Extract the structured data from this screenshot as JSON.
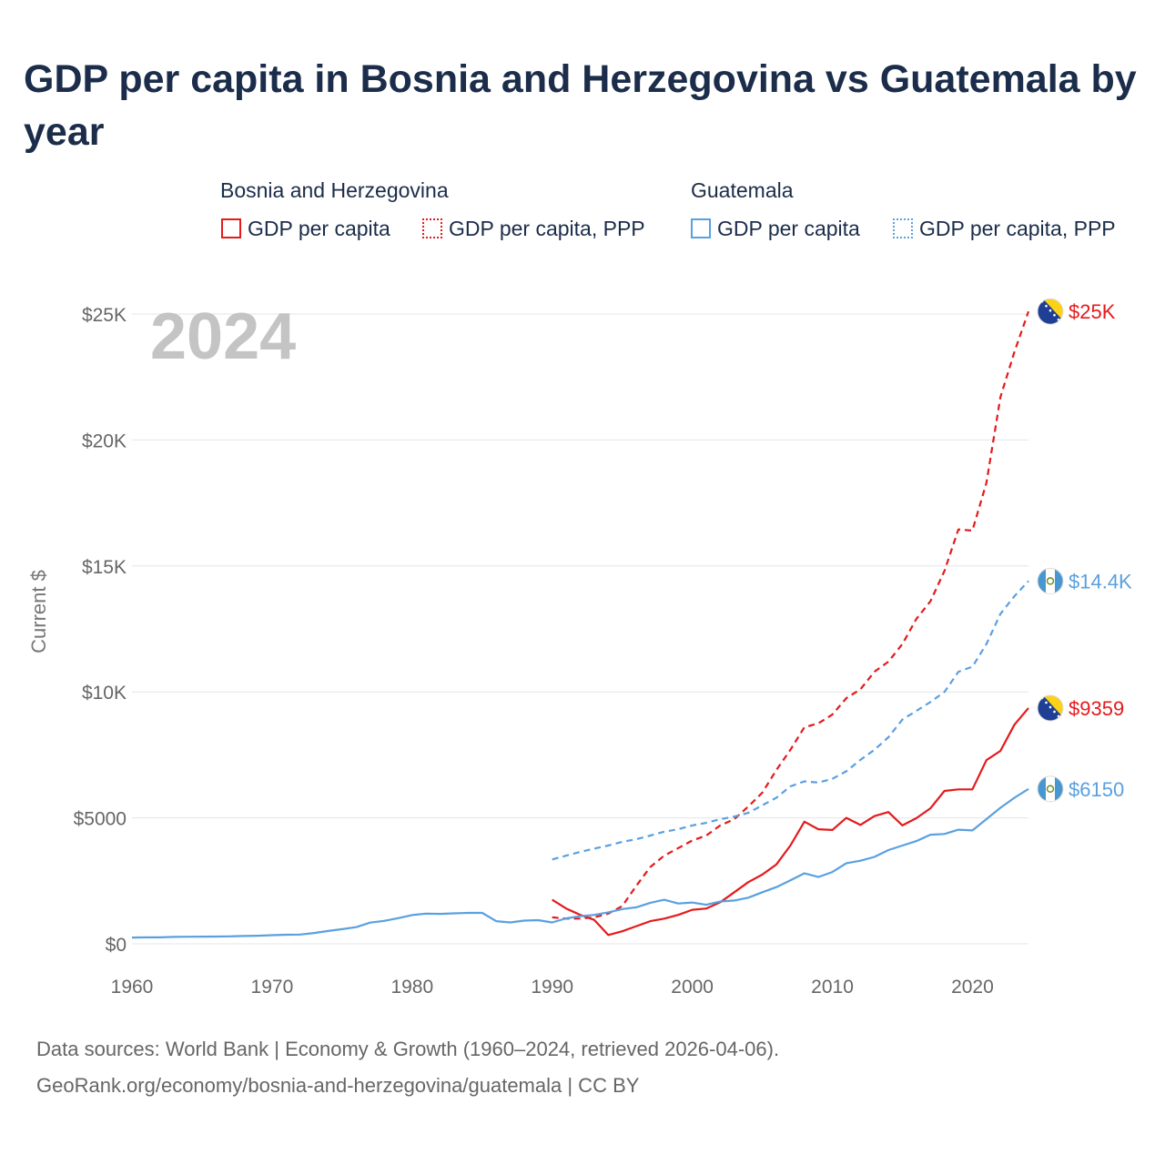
{
  "title": "GDP per capita in Bosnia and Herzegovina vs Guatemala by year",
  "legend": {
    "groups": [
      {
        "name": "Bosnia and Herzegovina",
        "items": [
          "GDP per capita",
          "GDP per capita, PPP"
        ]
      },
      {
        "name": "Guatemala",
        "items": [
          "GDP per capita",
          "GDP per capita, PPP"
        ]
      }
    ]
  },
  "footer": {
    "line1": "Data sources: World Bank | Economy & Growth (1960–2024, retrieved 2026-04-06).",
    "line2": "GeoRank.org/economy/bosnia-and-herzegovina/guatemala | CC BY"
  },
  "colors": {
    "bosnia": "#e41a1c",
    "guatemala": "#5aa0e0",
    "grid": "#e6e6e6",
    "axis_text": "#666666"
  },
  "chart_data": {
    "type": "line",
    "title": "GDP per capita in Bosnia and Herzegovina vs Guatemala by year",
    "watermark_year": "2024",
    "ylabel": "Current $",
    "xlabel": "",
    "xlim": [
      1960,
      2024
    ],
    "ylim": [
      0,
      25000
    ],
    "x_ticks": [
      1960,
      1970,
      1980,
      1990,
      2000,
      2010,
      2020
    ],
    "y_ticks": [
      {
        "value": 0,
        "label": "$0"
      },
      {
        "value": 5000,
        "label": "$5000"
      },
      {
        "value": 10000,
        "label": "$10K"
      },
      {
        "value": 15000,
        "label": "$15K"
      },
      {
        "value": 20000,
        "label": "$20K"
      },
      {
        "value": 25000,
        "label": "$25K"
      }
    ],
    "series": [
      {
        "name": "Bosnia and Herzegovina GDP per capita, PPP",
        "country": "bosnia",
        "style": "dashed",
        "end_label": "$25K",
        "flag": "bosnia-flag-icon",
        "x": [
          1990,
          1991,
          1992,
          1993,
          1994,
          1995,
          1996,
          1997,
          1998,
          1999,
          2000,
          2001,
          2002,
          2003,
          2004,
          2005,
          2006,
          2007,
          2008,
          2009,
          2010,
          2011,
          2012,
          2013,
          2014,
          2015,
          2016,
          2017,
          2018,
          2019,
          2020,
          2021,
          2022,
          2023,
          2024
        ],
        "values": [
          1050,
          1000,
          1000,
          1050,
          1200,
          1500,
          2300,
          3050,
          3500,
          3800,
          4100,
          4300,
          4700,
          4950,
          5450,
          6000,
          6900,
          7700,
          8600,
          8750,
          9100,
          9750,
          10100,
          10800,
          11200,
          11900,
          12900,
          13600,
          14800,
          16450,
          16400,
          18300,
          21700,
          23500,
          25100
        ]
      },
      {
        "name": "Guatemala GDP per capita, PPP",
        "country": "guatemala",
        "style": "dashed",
        "end_label": "$14.4K",
        "flag": "guatemala-flag-icon",
        "x": [
          1990,
          1991,
          1992,
          1993,
          1994,
          1995,
          1996,
          1997,
          1998,
          1999,
          2000,
          2001,
          2002,
          2003,
          2004,
          2005,
          2006,
          2007,
          2008,
          2009,
          2010,
          2011,
          2012,
          2013,
          2014,
          2015,
          2016,
          2017,
          2018,
          2019,
          2020,
          2021,
          2022,
          2023,
          2024
        ],
        "values": [
          3350,
          3500,
          3650,
          3780,
          3900,
          4050,
          4150,
          4300,
          4450,
          4550,
          4700,
          4800,
          4950,
          5050,
          5200,
          5500,
          5800,
          6250,
          6450,
          6400,
          6550,
          6850,
          7300,
          7700,
          8200,
          8900,
          9250,
          9600,
          10000,
          10800,
          11000,
          11900,
          13100,
          13800,
          14400
        ]
      },
      {
        "name": "Bosnia and Herzegovina GDP per capita",
        "country": "bosnia",
        "style": "solid",
        "end_label": "$9359",
        "flag": "bosnia-flag-icon",
        "x": [
          1990,
          1991,
          1992,
          1993,
          1994,
          1995,
          1996,
          1997,
          1998,
          1999,
          2000,
          2001,
          2002,
          2003,
          2004,
          2005,
          2006,
          2007,
          2008,
          2009,
          2010,
          2011,
          2012,
          2013,
          2014,
          2015,
          2016,
          2017,
          2018,
          2019,
          2020,
          2021,
          2022,
          2023,
          2024
        ],
        "values": [
          1750,
          1400,
          1150,
          950,
          350,
          500,
          700,
          900,
          1000,
          1150,
          1350,
          1400,
          1650,
          2050,
          2450,
          2750,
          3150,
          3900,
          4850,
          4550,
          4520,
          5000,
          4720,
          5070,
          5230,
          4700,
          4990,
          5380,
          6070,
          6130,
          6130,
          7290,
          7660,
          8700,
          9359
        ]
      },
      {
        "name": "Guatemala GDP per capita",
        "country": "guatemala",
        "style": "solid",
        "end_label": "$6150",
        "flag": "guatemala-flag-icon",
        "x": [
          1960,
          1961,
          1962,
          1963,
          1964,
          1965,
          1966,
          1967,
          1968,
          1969,
          1970,
          1971,
          1972,
          1973,
          1974,
          1975,
          1976,
          1977,
          1978,
          1979,
          1980,
          1981,
          1982,
          1983,
          1984,
          1985,
          1986,
          1987,
          1988,
          1989,
          1990,
          1991,
          1992,
          1993,
          1994,
          1995,
          1996,
          1997,
          1998,
          1999,
          2000,
          2001,
          2002,
          2003,
          2004,
          2005,
          2006,
          2007,
          2008,
          2009,
          2010,
          2011,
          2012,
          2013,
          2014,
          2015,
          2016,
          2017,
          2018,
          2019,
          2020,
          2021,
          2022,
          2023,
          2024
        ],
        "values": [
          250,
          255,
          258,
          275,
          280,
          285,
          288,
          295,
          310,
          320,
          345,
          360,
          370,
          430,
          510,
          580,
          660,
          840,
          910,
          1020,
          1140,
          1200,
          1190,
          1210,
          1230,
          1230,
          900,
          850,
          920,
          940,
          850,
          1010,
          1100,
          1150,
          1250,
          1380,
          1450,
          1630,
          1750,
          1600,
          1640,
          1550,
          1680,
          1720,
          1830,
          2050,
          2250,
          2520,
          2800,
          2650,
          2850,
          3200,
          3300,
          3450,
          3720,
          3900,
          4080,
          4330,
          4360,
          4530,
          4500,
          4950,
          5400,
          5800,
          6150
        ]
      }
    ]
  }
}
